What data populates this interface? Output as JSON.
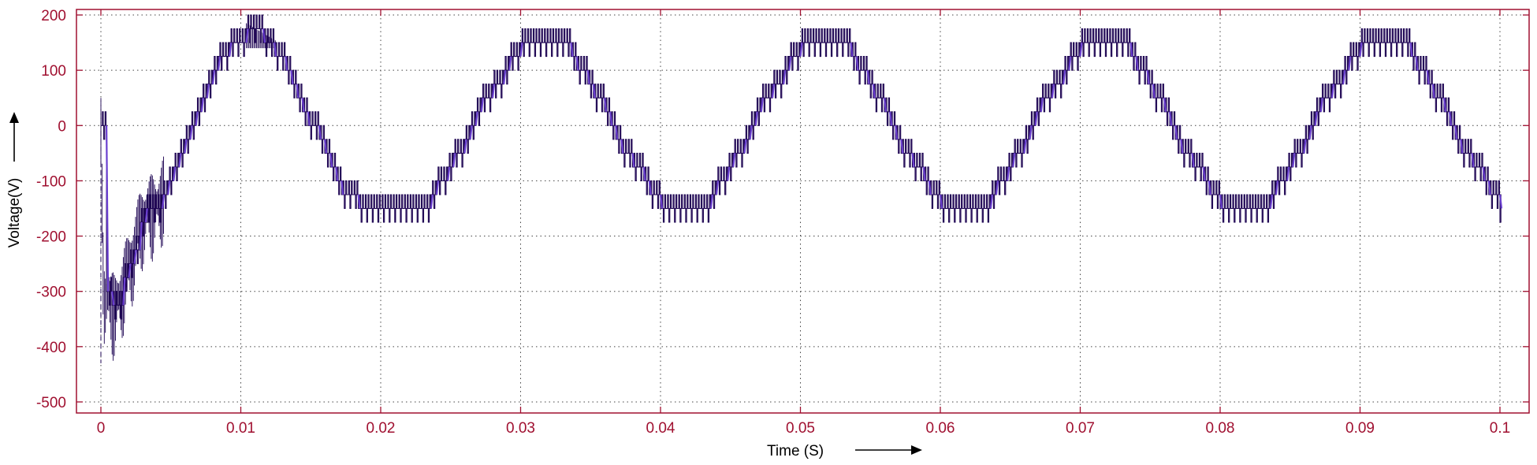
{
  "colors": {
    "axes": "#a01030",
    "grid": "#444444",
    "trace": "#1a0050",
    "trace_accent": "#6a3fd0",
    "background": "#ffffff"
  },
  "chart_data": {
    "type": "line",
    "title": "",
    "xlabel": "Time (S)",
    "ylabel": "Voltage(V)",
    "xlim": [
      0,
      0.1
    ],
    "ylim": [
      -520,
      210
    ],
    "grid": true,
    "xticks": [
      "0",
      "0.01",
      "0.02",
      "0.03",
      "0.04",
      "0.05",
      "0.06",
      "0.07",
      "0.08",
      "0.09",
      "0.1"
    ],
    "yticks": [
      "200",
      "100",
      "0",
      "-100",
      "-200",
      "-300",
      "-400",
      "-500"
    ],
    "series": [
      {
        "description": "multilevel staircase inverter output voltage, ~50 Hz, clipped near +/-150 V after an initial transient",
        "x": [
          0,
          0.0002,
          0.001,
          0.002,
          0.003,
          0.004,
          0.005,
          0.006,
          0.007,
          0.008,
          0.009,
          0.0095,
          0.01,
          0.0105,
          0.011,
          0.012,
          0.013,
          0.015,
          0.017,
          0.019,
          0.02,
          0.021,
          0.023,
          0.024,
          0.025,
          0.027,
          0.029,
          0.03,
          0.031,
          0.033,
          0.034,
          0.035,
          0.037,
          0.039,
          0.04,
          0.041,
          0.043,
          0.044,
          0.045,
          0.047,
          0.049,
          0.05,
          0.051,
          0.053,
          0.054,
          0.055,
          0.057,
          0.059,
          0.06,
          0.061,
          0.063,
          0.064,
          0.065,
          0.067,
          0.069,
          0.07,
          0.071,
          0.073,
          0.074,
          0.075,
          0.077,
          0.079,
          0.08,
          0.081,
          0.083,
          0.084,
          0.085,
          0.087,
          0.089,
          0.09,
          0.091,
          0.093,
          0.094,
          0.095,
          0.097,
          0.099,
          0.1
        ],
        "y": [
          -10,
          -300,
          -330,
          -250,
          -160,
          -140,
          -90,
          -20,
          40,
          100,
          140,
          160,
          150,
          180,
          170,
          150,
          110,
          0,
          -110,
          -150,
          -155,
          -155,
          -150,
          -110,
          -70,
          30,
          110,
          150,
          150,
          150,
          110,
          70,
          -30,
          -110,
          -150,
          -155,
          -150,
          -110,
          -70,
          30,
          110,
          150,
          150,
          150,
          110,
          70,
          -30,
          -110,
          -150,
          -155,
          -150,
          -110,
          -70,
          30,
          110,
          150,
          150,
          150,
          110,
          70,
          -30,
          -110,
          -150,
          -155,
          -150,
          -110,
          -70,
          30,
          110,
          150,
          150,
          150,
          110,
          70,
          -30,
          -110,
          -140
        ]
      }
    ]
  }
}
